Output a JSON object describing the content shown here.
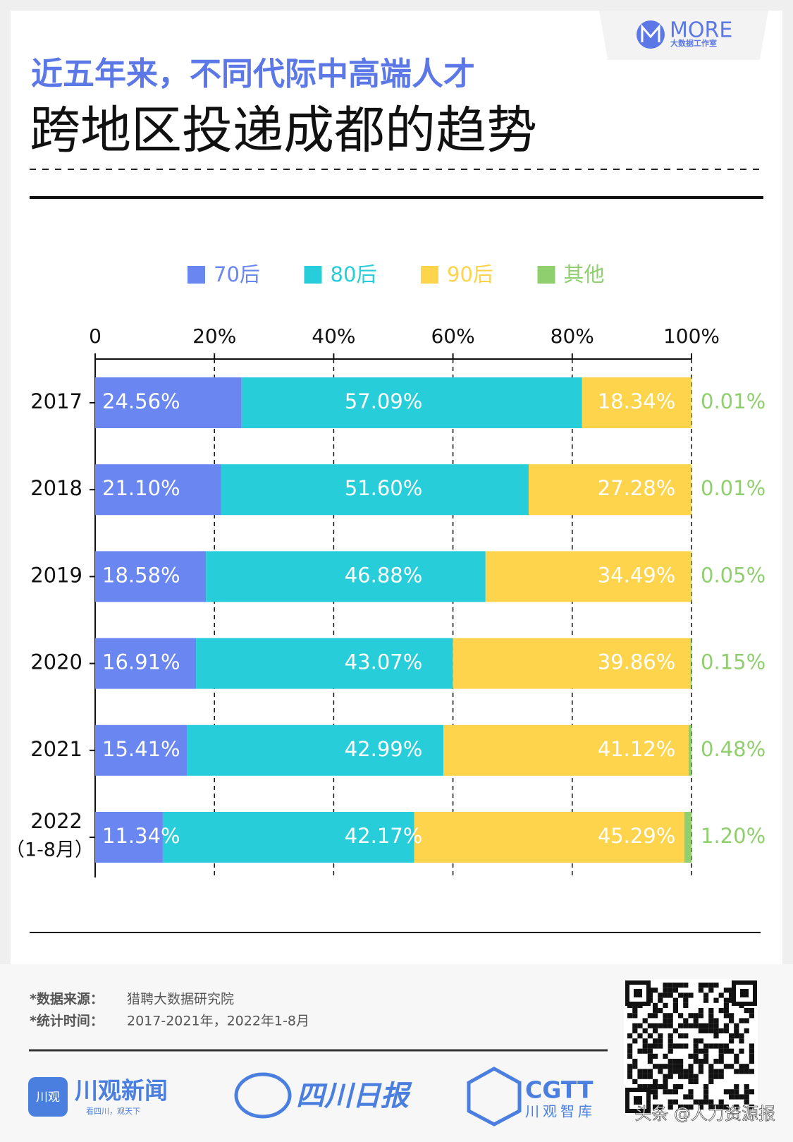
{
  "header": {
    "logo": "MORE",
    "logo_sub": "大数据工作室",
    "title_line1": "近五年来，不同代际中高端人才",
    "title_line2": "跨地区投递成都的趋势"
  },
  "chart_data": {
    "type": "stacked-bar-horizontal",
    "categories": [
      "2017",
      "2018",
      "2019",
      "2020",
      "2021",
      "2022"
    ],
    "category_notes": [
      null,
      null,
      null,
      null,
      null,
      "（1-8月）"
    ],
    "xlim": [
      0,
      100
    ],
    "xticks": [
      0,
      {
        "value": 20,
        "label": "20%"
      },
      {
        "value": 40,
        "label": "40%"
      },
      {
        "value": 60,
        "label": "60%"
      },
      {
        "value": 80,
        "label": "80%"
      },
      {
        "value": 100,
        "label": "100%"
      }
    ],
    "grid": true,
    "series": [
      {
        "name": "70后",
        "color": "#6a86f0",
        "values": [
          24.56,
          21.1,
          18.58,
          16.91,
          15.41,
          11.34
        ],
        "value_labels": [
          "24.56%",
          "21.10%",
          "18.58%",
          "16.91%",
          "15.41%",
          "11.34%"
        ]
      },
      {
        "name": "80后",
        "color": "#27cdd8",
        "values": [
          57.09,
          51.6,
          46.88,
          43.07,
          42.99,
          42.17
        ],
        "value_labels": [
          "57.09%",
          "51.60%",
          "46.88%",
          "43.07%",
          "42.99%",
          "42.17%"
        ]
      },
      {
        "name": "90后",
        "color": "#fdd44c",
        "values": [
          18.34,
          27.28,
          34.49,
          39.86,
          41.12,
          45.29
        ],
        "value_labels": [
          "18.34%",
          "27.28%",
          "34.49%",
          "39.86%",
          "41.12%",
          "45.29%"
        ]
      },
      {
        "name": "其他",
        "color": "#8fcf6e",
        "values": [
          0.01,
          0.01,
          0.05,
          0.15,
          0.48,
          1.2
        ],
        "value_labels": [
          "0.01%",
          "0.01%",
          "0.05%",
          "0.15%",
          "0.48%",
          "1.20%"
        ]
      }
    ]
  },
  "source": {
    "line1_label": "*数据来源：",
    "line1_text": "猎聘大数据研究院",
    "line2_label": "*统计时间：",
    "line2_text": "2017-2021年，2022年1-8月"
  },
  "footer": {
    "brand1": "川观新闻",
    "brand1_icon": "川观",
    "brand1_sub": "看四川，观天下",
    "brand2": "四川日报",
    "brand3": "CGTT",
    "brand3_sub": "川观智库",
    "watermark": "头条 @人力资源报"
  }
}
